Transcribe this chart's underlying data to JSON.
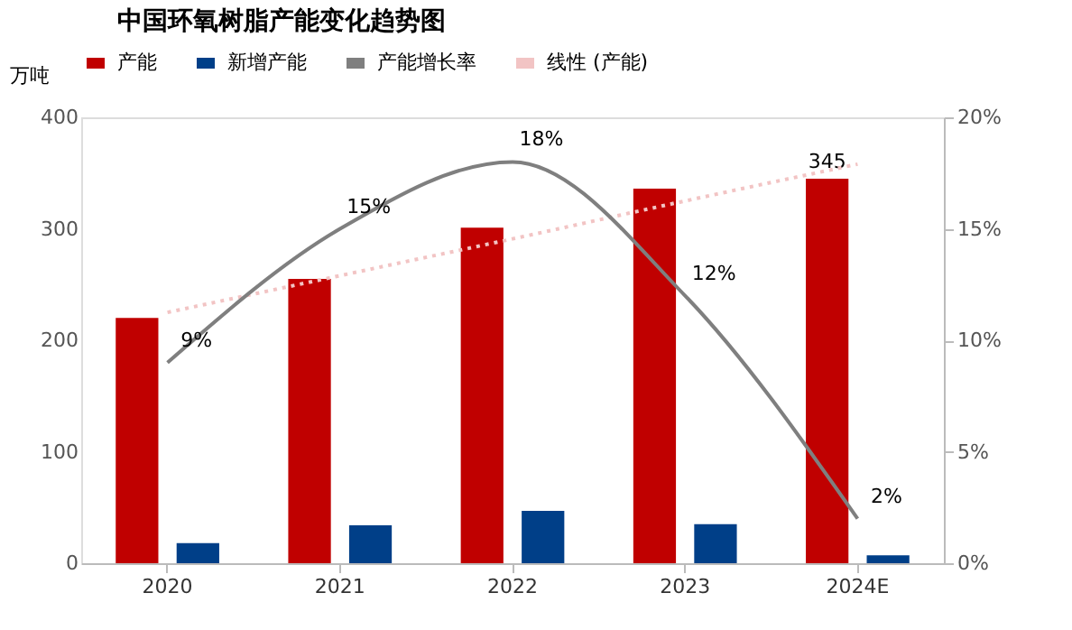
{
  "chart_data": {
    "type": "bar",
    "title": "中国环氧树脂产能变化趋势图",
    "ylabel": "万吨",
    "categories": [
      "2020",
      "2021",
      "2022",
      "2023",
      "2024E"
    ],
    "series": [
      {
        "name": "产能",
        "color": "#c00000",
        "values": [
          220,
          255,
          301,
          336,
          345
        ],
        "value_labels": [
          null,
          null,
          null,
          null,
          "345"
        ]
      },
      {
        "name": "新增产能",
        "color": "#003f88",
        "values": [
          18,
          34,
          47,
          35,
          7
        ]
      },
      {
        "name": "产能增长率",
        "type": "line",
        "line_style": "solid",
        "axis": "y2",
        "color": "#7f7f7f",
        "values": [
          9,
          15,
          18,
          12,
          2
        ],
        "value_labels": [
          "9%",
          "15%",
          "18%",
          "12%",
          "2%"
        ]
      },
      {
        "name": "线性 (产能)",
        "type": "line",
        "line_style": "dotted",
        "color": "#f2c4c4",
        "values": [
          225,
          258,
          291,
          325,
          358
        ]
      }
    ],
    "ylim": [
      0,
      400
    ],
    "yticks": [
      0,
      100,
      200,
      300,
      400
    ],
    "y2lim": [
      0,
      20
    ],
    "y2ticks": [
      {
        "value": 0,
        "label": "0%"
      },
      {
        "value": 5,
        "label": "5%"
      },
      {
        "value": 10,
        "label": "10%"
      },
      {
        "value": 15,
        "label": "15%"
      },
      {
        "value": 20,
        "label": "20%"
      }
    ],
    "grid": false,
    "legend": "top",
    "marker": "none"
  }
}
